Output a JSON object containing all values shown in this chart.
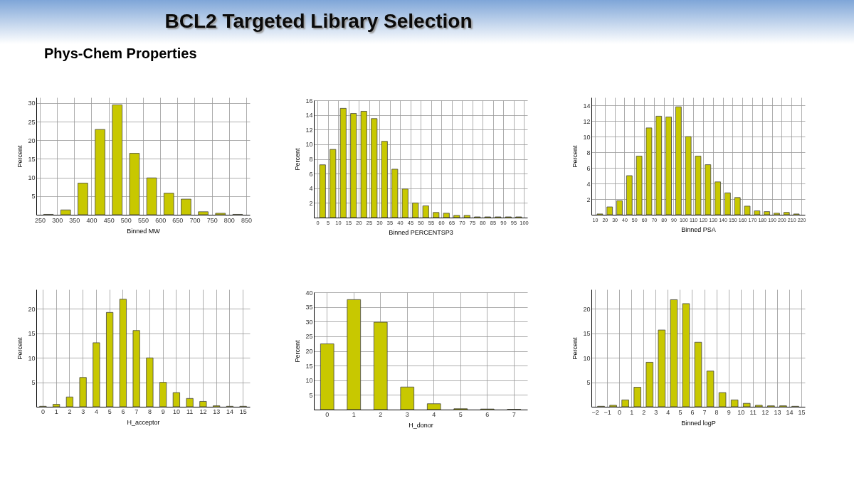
{
  "chart_data": [
    {
      "type": "histogram",
      "title": "BCL2 Targeted Library Selection",
      "subtitle": "Phys-Chem Properties",
      "xlabel": "Binned MW",
      "ylabel": "Percent",
      "color": "#c8c800",
      "grid": true,
      "bins": [
        250,
        300,
        350,
        400,
        450,
        500,
        550,
        600,
        650,
        700,
        750,
        800,
        850
      ],
      "values": [
        0.1,
        1.3,
        8.5,
        22.9,
        29.5,
        16.5,
        9.9,
        5.8,
        4.2,
        0.8,
        0.4,
        0.1
      ],
      "xlim": [
        250,
        850
      ],
      "xticks": [
        250,
        300,
        350,
        400,
        450,
        500,
        550,
        600,
        650,
        700,
        750,
        800,
        850
      ],
      "ylim": [
        0,
        31.5
      ],
      "yticks": [
        5,
        10,
        15,
        20,
        25,
        30
      ]
    },
    {
      "type": "histogram",
      "xlabel": "Binned PERCENTSP3",
      "ylabel": "Percent",
      "color": "#c8c800",
      "grid": true,
      "bins": [
        0,
        5,
        10,
        15,
        20,
        25,
        30,
        35,
        40,
        45,
        50,
        55,
        60,
        65,
        70,
        75,
        80,
        85,
        90,
        95,
        100
      ],
      "values": [
        7.2,
        9.3,
        14.9,
        14.2,
        14.5,
        13.5,
        10.4,
        6.6,
        3.9,
        2.0,
        1.6,
        0.7,
        0.6,
        0.3,
        0.3,
        0.1,
        0.1,
        0.1,
        0.1,
        0.1
      ],
      "xlim": [
        0,
        100
      ],
      "xticks": [
        0,
        5,
        10,
        15,
        20,
        25,
        30,
        35,
        40,
        45,
        50,
        55,
        60,
        65,
        70,
        75,
        80,
        85,
        90,
        95,
        100
      ],
      "ylim": [
        0,
        16
      ],
      "yticks": [
        2,
        4,
        6,
        8,
        10,
        12,
        14,
        16
      ]
    },
    {
      "type": "histogram",
      "xlabel": "Binned PSA",
      "ylabel": "Percent",
      "color": "#c8c800",
      "grid": true,
      "bins": [
        10,
        20,
        30,
        40,
        50,
        60,
        70,
        80,
        90,
        100,
        110,
        120,
        130,
        140,
        150,
        160,
        170,
        180,
        190,
        200,
        210,
        220
      ],
      "values": [
        0.1,
        1.0,
        1.8,
        5.0,
        7.5,
        11.1,
        12.6,
        12.5,
        13.8,
        10.0,
        7.5,
        6.4,
        4.2,
        2.8,
        2.2,
        1.1,
        0.5,
        0.4,
        0.2,
        0.3,
        0.1
      ],
      "xlim": [
        10,
        220
      ],
      "xticks": [
        10,
        20,
        30,
        40,
        50,
        60,
        70,
        80,
        90,
        100,
        110,
        120,
        130,
        140,
        150,
        160,
        170,
        180,
        190,
        200,
        210,
        220
      ],
      "ylim": [
        0,
        15
      ],
      "yticks": [
        2,
        4,
        6,
        8,
        10,
        12,
        14
      ]
    },
    {
      "type": "bar",
      "xlabel": "H_acceptor",
      "ylabel": "Percent",
      "color": "#c8c800",
      "grid": true,
      "categories": [
        "0",
        "1",
        "2",
        "3",
        "4",
        "5",
        "6",
        "7",
        "8",
        "9",
        "10",
        "11",
        "12",
        "13",
        "14",
        "15"
      ],
      "values": [
        0.1,
        0.5,
        2.0,
        6.0,
        13.1,
        19.3,
        22.0,
        15.6,
        10.0,
        5.0,
        2.9,
        1.7,
        1.1,
        0.2,
        0.1,
        0.1
      ],
      "ylim": [
        0,
        24
      ],
      "yticks": [
        5,
        10,
        15,
        20
      ]
    },
    {
      "type": "bar",
      "xlabel": "H_donor",
      "ylabel": "Percent",
      "color": "#c8c800",
      "grid": true,
      "categories": [
        "0",
        "1",
        "2",
        "3",
        "4",
        "5",
        "6",
        "7"
      ],
      "values": [
        22.4,
        37.5,
        29.8,
        7.7,
        2.0,
        0.3,
        0.2,
        0.1
      ],
      "ylim": [
        0,
        40
      ],
      "yticks": [
        5,
        10,
        15,
        20,
        25,
        30,
        35,
        40
      ]
    },
    {
      "type": "histogram",
      "xlabel": "Binned logP",
      "ylabel": "Percent",
      "color": "#c8c800",
      "grid": true,
      "bins": [
        -2,
        -1,
        0,
        1,
        2,
        3,
        4,
        5,
        6,
        7,
        8,
        9,
        10,
        11,
        12,
        13,
        14,
        15
      ],
      "values": [
        0.1,
        0.3,
        1.4,
        4.0,
        9.1,
        15.7,
        21.9,
        21.1,
        13.2,
        7.3,
        2.9,
        1.4,
        0.7,
        0.3,
        0.2,
        0.2,
        0.1
      ],
      "xlim": [
        -2,
        15
      ],
      "xticks": [
        -2,
        -1,
        0,
        1,
        2,
        3,
        4,
        5,
        6,
        7,
        8,
        9,
        10,
        11,
        12,
        13,
        14,
        15
      ],
      "ylim": [
        0,
        24
      ],
      "yticks": [
        5,
        10,
        15,
        20
      ]
    }
  ]
}
